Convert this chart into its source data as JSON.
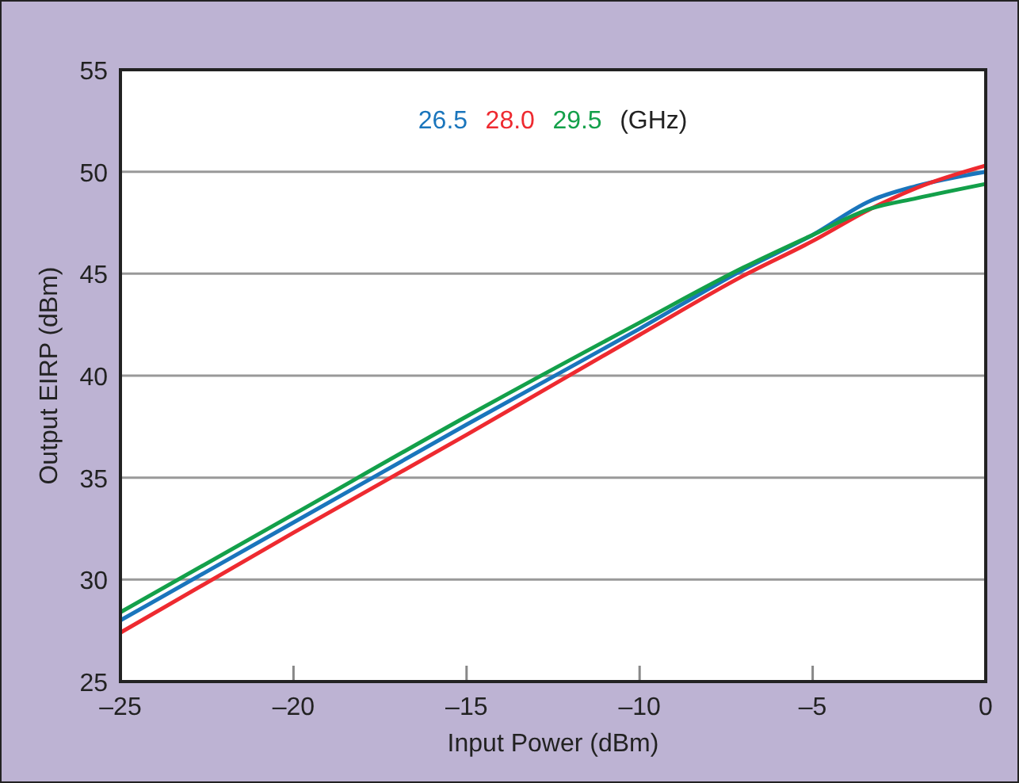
{
  "chart_data": {
    "type": "line",
    "xlabel": "Input Power (dBm)",
    "ylabel": "Output EIRP (dBm)",
    "legend_title": "(GHz)",
    "legend": "top",
    "grid": "y",
    "line_style": "solid",
    "x": [
      -25,
      -20,
      -15,
      -10,
      -7,
      -5,
      -3.3,
      -2,
      0
    ],
    "series": [
      {
        "name": "26.5",
        "color": "#1a75bc",
        "values": [
          28.0,
          32.8,
          37.6,
          42.3,
          45.2,
          46.9,
          48.6,
          49.3,
          50.0
        ]
      },
      {
        "name": "28.0",
        "color": "#ee2a30",
        "values": [
          27.4,
          32.3,
          37.1,
          42.0,
          44.9,
          46.6,
          48.2,
          49.2,
          50.3
        ]
      },
      {
        "name": "29.5",
        "color": "#13a04a",
        "values": [
          28.4,
          33.2,
          38.0,
          42.6,
          45.3,
          46.9,
          48.2,
          48.7,
          49.4
        ]
      }
    ],
    "xlim": [
      -25,
      0
    ],
    "xticks": [
      {
        "value": -25,
        "label": "–25"
      },
      {
        "value": -20,
        "label": "–20"
      },
      {
        "value": -15,
        "label": "–15"
      },
      {
        "value": -10,
        "label": "–10"
      },
      {
        "value": -5,
        "label": "–5"
      },
      0
    ],
    "ylim": [
      25,
      55
    ],
    "yticks": [
      25,
      30,
      35,
      40,
      45,
      50,
      55
    ]
  }
}
